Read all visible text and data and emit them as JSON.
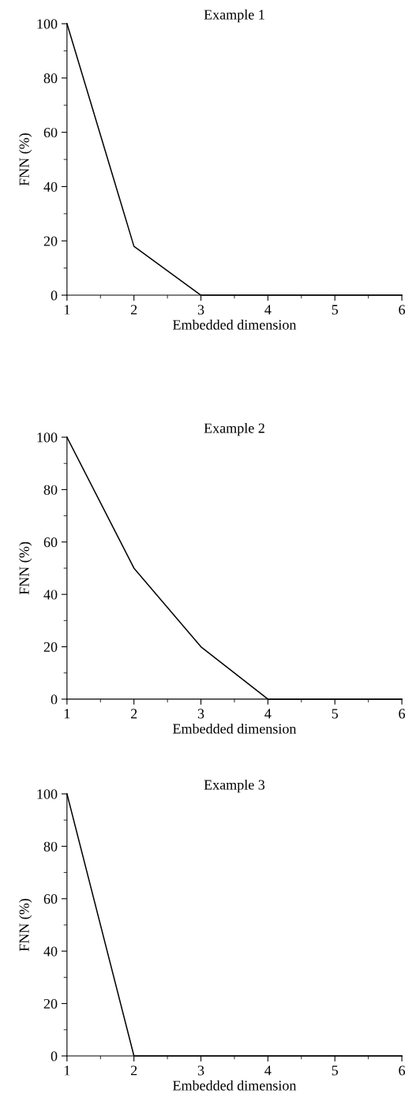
{
  "chart_data": [
    {
      "type": "line",
      "title": "Example 1",
      "xlabel": "Embedded dimension",
      "ylabel": "FNN (%)",
      "x": [
        1,
        2,
        3,
        4,
        5,
        6
      ],
      "series": [
        {
          "color": "#000000",
          "values": [
            100,
            18,
            0,
            0,
            0,
            0
          ]
        }
      ],
      "xlim": [
        1,
        6
      ],
      "ylim": [
        0,
        100
      ],
      "xticks": [
        1,
        2,
        3,
        4,
        5,
        6
      ],
      "yticks": [
        0,
        20,
        40,
        60,
        80,
        100
      ],
      "grid": false
    },
    {
      "type": "line",
      "title": "Example 2",
      "xlabel": "Embedded dimension",
      "ylabel": "FNN (%)",
      "x": [
        1,
        2,
        3,
        4,
        5,
        6
      ],
      "series": [
        {
          "color": "#000000",
          "values": [
            100,
            50,
            20,
            0,
            0,
            0
          ]
        }
      ],
      "xlim": [
        1,
        6
      ],
      "ylim": [
        0,
        100
      ],
      "xticks": [
        1,
        2,
        3,
        4,
        5,
        6
      ],
      "yticks": [
        0,
        20,
        40,
        60,
        80,
        100
      ],
      "grid": false
    },
    {
      "type": "line",
      "title": "Example 3",
      "xlabel": "Embedded dimension",
      "ylabel": "FNN (%)",
      "x": [
        1,
        2,
        3,
        4,
        5,
        6
      ],
      "series": [
        {
          "color": "#000000",
          "values": [
            100,
            0,
            0,
            0,
            0,
            0
          ]
        }
      ],
      "xlim": [
        1,
        6
      ],
      "ylim": [
        0,
        100
      ],
      "xticks": [
        1,
        2,
        3,
        4,
        5,
        6
      ],
      "yticks": [
        0,
        20,
        40,
        60,
        80,
        100
      ],
      "grid": false
    }
  ]
}
